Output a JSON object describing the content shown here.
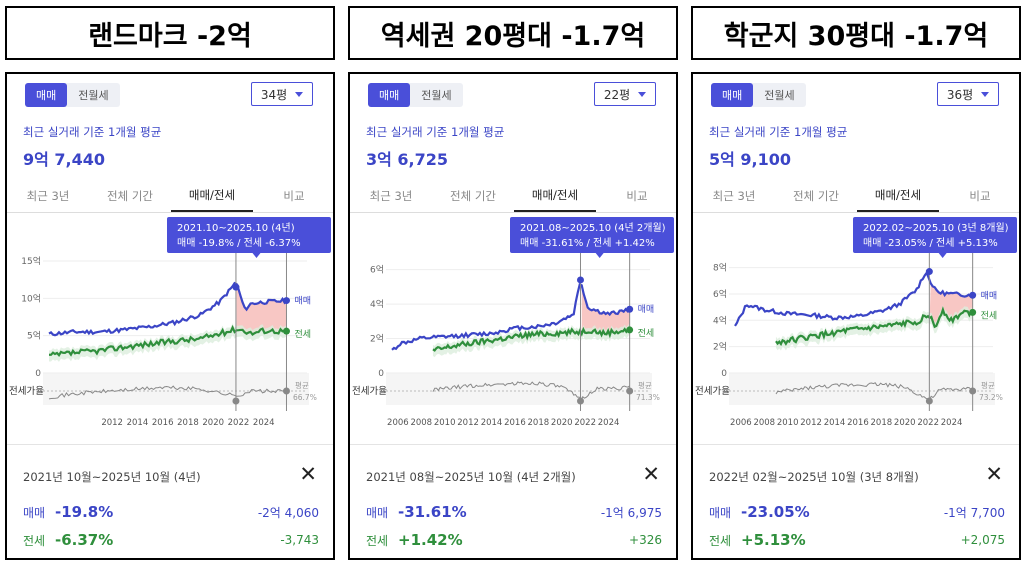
{
  "panels": [
    {
      "heading": "랜드마크 -2억",
      "toggle": [
        "매매",
        "전월세"
      ],
      "size": "34평",
      "subtitle": "최근 실거래 기준 1개월 평균",
      "price": "9억 7,440",
      "tabs": [
        "최근 3년",
        "전체 기간",
        "매매/전세",
        "비교"
      ],
      "tooltip_range": "2021.10~2025.10 (4년)",
      "tooltip_values": "매매 -19.8%  /  전세 -6.37%",
      "y_ticks": [
        "15억",
        "10억",
        "5억",
        "0"
      ],
      "x_ticks": [
        "2012",
        "2014",
        "2016",
        "2018",
        "2020",
        "2022",
        "2024"
      ],
      "series_labels": [
        "매매",
        "전세"
      ],
      "ratio_label": "전세가율",
      "ratio_avg_label": "평균",
      "ratio_avg": "66.7%",
      "range_text": "2021년 10월~2025년 10월 (4년)",
      "sale_label": "매매",
      "sale_pct": "-19.8%",
      "sale_amt": "-2억 4,060",
      "jeonse_label": "전세",
      "jeonse_pct": "-6.37%",
      "jeonse_amt": "-3,743"
    },
    {
      "heading": "역세권 20평대 -1.7억",
      "toggle": [
        "매매",
        "전월세"
      ],
      "size": "22평",
      "subtitle": "최근 실거래 기준 1개월 평균",
      "price": "3억 6,725",
      "tabs": [
        "최근 3년",
        "전체 기간",
        "매매/전세",
        "비교"
      ],
      "tooltip_range": "2021.08~2025.10 (4년 2개월)",
      "tooltip_values": "매매 -31.61%  /  전세 +1.42%",
      "y_ticks": [
        "6억",
        "4억",
        "2억",
        "0"
      ],
      "x_ticks": [
        "2006",
        "2008",
        "2010",
        "2012",
        "2014",
        "2016",
        "2018",
        "2020",
        "2022",
        "2024"
      ],
      "series_labels": [
        "매매",
        "전세"
      ],
      "ratio_label": "전세가율",
      "ratio_avg_label": "평균",
      "ratio_avg": "71.3%",
      "range_text": "2021년 08월~2025년 10월 (4년 2개월)",
      "sale_label": "매매",
      "sale_pct": "-31.61%",
      "sale_amt": "-1억 6,975",
      "jeonse_label": "전세",
      "jeonse_pct": "+1.42%",
      "jeonse_amt": "+326"
    },
    {
      "heading": "학군지 30평대 -1.7억",
      "toggle": [
        "매매",
        "전월세"
      ],
      "size": "36평",
      "subtitle": "최근 실거래 기준 1개월 평균",
      "price": "5억 9,100",
      "tabs": [
        "최근 3년",
        "전체 기간",
        "매매/전세",
        "비교"
      ],
      "tooltip_range": "2022.02~2025.10 (3년 8개월)",
      "tooltip_values": "매매 -23.05%  /  전세 +5.13%",
      "y_ticks": [
        "8억",
        "6억",
        "4억",
        "2억",
        "0"
      ],
      "x_ticks": [
        "2006",
        "2008",
        "2010",
        "2012",
        "2014",
        "2016",
        "2018",
        "2020",
        "2022",
        "2024"
      ],
      "series_labels": [
        "매매",
        "전세"
      ],
      "ratio_label": "전세가율",
      "ratio_avg_label": "평균",
      "ratio_avg": "73.2%",
      "range_text": "2022년 02월~2025년 10월 (3년 8개월)",
      "sale_label": "매매",
      "sale_pct": "-23.05%",
      "sale_amt": "-1억 7,700",
      "jeonse_label": "전세",
      "jeonse_pct": "+5.13%",
      "jeonse_amt": "+2,075"
    }
  ],
  "colors": {
    "accent": "#4a4fd9",
    "sale": "#3b45c6",
    "jeonse": "#2f8f3c",
    "ratio": "#888888"
  },
  "close_icon": "close-icon",
  "chart_data": [
    {
      "type": "line",
      "x_range": [
        2007,
        2026
      ],
      "ylim": [
        0,
        15
      ],
      "x_ticks": [
        "2012",
        "2014",
        "2016",
        "2018",
        "2020",
        "2022",
        "2024"
      ],
      "y_ticks": [
        "15억",
        "10억",
        "5억",
        "0"
      ],
      "series": [
        {
          "name": "매매",
          "x": [
            2007,
            2009,
            2011,
            2013,
            2015,
            2017,
            2019,
            2020.5,
            2021.5,
            2021.8,
            2022.5,
            2023,
            2024,
            2025.8
          ],
          "values": [
            5.2,
            5.5,
            5.5,
            5.8,
            6.2,
            6.8,
            7.8,
            9.5,
            11.5,
            12.2,
            8.5,
            9.3,
            9.5,
            9.7
          ]
        },
        {
          "name": "전세",
          "x": [
            2007,
            2009,
            2011,
            2013,
            2015,
            2017,
            2019,
            2021,
            2021.8,
            2022.5,
            2023,
            2024,
            2025.8
          ],
          "values": [
            2.3,
            2.7,
            3.0,
            3.5,
            3.9,
            4.3,
            4.6,
            5.5,
            5.9,
            5.7,
            5.3,
            5.7,
            5.6
          ]
        }
      ],
      "ratio": {
        "x": [
          2007,
          2010,
          2013,
          2016,
          2019,
          2021.8,
          2023,
          2025.8
        ],
        "values": [
          46,
          55,
          60,
          65,
          62,
          48,
          58,
          57
        ]
      },
      "range": [
        2021.8,
        2025.8
      ]
    },
    {
      "type": "line",
      "x_range": [
        2005.5,
        2026
      ],
      "ylim": [
        0,
        6.5
      ],
      "x_ticks": [
        "2006",
        "2008",
        "2010",
        "2012",
        "2014",
        "2016",
        "2018",
        "2020",
        "2022",
        "2024"
      ],
      "y_ticks": [
        "6억",
        "4억",
        "2억",
        "0"
      ],
      "series": [
        {
          "name": "매매",
          "x": [
            2005.5,
            2006.2,
            2008,
            2010,
            2012,
            2014,
            2016,
            2018,
            2019.5,
            2021,
            2021.6,
            2022.2,
            2023,
            2024,
            2025.8
          ],
          "values": [
            1.3,
            1.7,
            2.0,
            2.1,
            2.2,
            2.3,
            2.6,
            2.7,
            2.9,
            3.4,
            5.4,
            3.8,
            3.6,
            3.4,
            3.7
          ]
        },
        {
          "name": "전세",
          "x": [
            2009,
            2011,
            2013,
            2015,
            2017,
            2019,
            2021.6,
            2022.5,
            2023.5,
            2024.5,
            2025.8
          ],
          "values": [
            1.3,
            1.6,
            1.8,
            2.0,
            2.2,
            2.3,
            2.4,
            2.5,
            2.3,
            2.4,
            2.5
          ]
        }
      ],
      "ratio": {
        "x": [
          2009,
          2012,
          2015,
          2018,
          2020,
          2021.6,
          2023,
          2025.8
        ],
        "values": [
          60,
          68,
          72,
          74,
          66,
          42,
          62,
          65
        ]
      },
      "range": [
        2021.6,
        2025.8
      ]
    },
    {
      "type": "line",
      "x_range": [
        2005.5,
        2026
      ],
      "ylim": [
        0,
        8.5
      ],
      "x_ticks": [
        "2006",
        "2008",
        "2010",
        "2012",
        "2014",
        "2016",
        "2018",
        "2020",
        "2022",
        "2024"
      ],
      "y_ticks": [
        "8억",
        "6억",
        "4억",
        "2억",
        "0"
      ],
      "series": [
        {
          "name": "매매",
          "x": [
            2005.5,
            2006.5,
            2008,
            2010,
            2012,
            2014,
            2016,
            2018,
            2019.5,
            2021,
            2021.8,
            2022.5,
            2023,
            2024,
            2025.8
          ],
          "values": [
            3.5,
            5.2,
            4.8,
            4.5,
            4.4,
            4.2,
            4.3,
            4.7,
            5.2,
            6.3,
            7.7,
            6.4,
            6.1,
            6.0,
            5.9
          ]
        },
        {
          "name": "전세",
          "x": [
            2009,
            2011,
            2013,
            2015,
            2017,
            2019,
            2021,
            2022.1,
            2022.6,
            2023.2,
            2024,
            2025,
            2025.8
          ],
          "values": [
            2.3,
            2.6,
            2.9,
            3.2,
            3.4,
            3.6,
            3.9,
            4.4,
            3.4,
            4.8,
            4.0,
            4.6,
            4.6
          ]
        }
      ],
      "ratio": {
        "x": [
          2009,
          2012,
          2015,
          2018,
          2020,
          2022.1,
          2023,
          2025.8
        ],
        "values": [
          55,
          65,
          70,
          72,
          66,
          40,
          60,
          62
        ]
      },
      "range": [
        2022.1,
        2025.8
      ]
    }
  ]
}
